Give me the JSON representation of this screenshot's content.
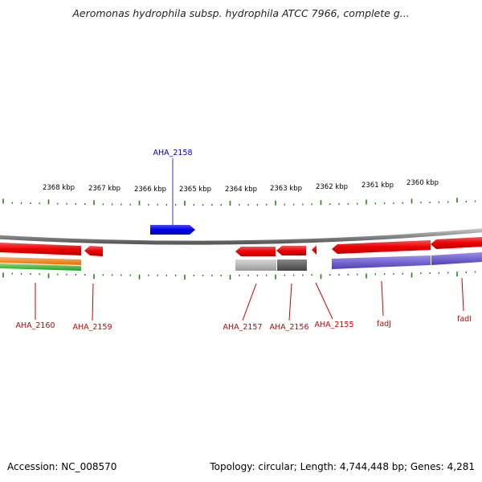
{
  "title": "Aeromonas hydrophila subsp. hydrophila ATCC 7966, complete g...",
  "footer": {
    "accession": "Accession: NC_008570",
    "summary": "Topology: circular; Length: 4,744,448 bp; Genes: 4,281"
  },
  "colors": {
    "backbone": "#8c8c8c",
    "tick": "#2e7d1a",
    "forward_gene": "#0000ee",
    "reverse_gene": "#ee0000",
    "gene_label_forward": "#0000aa",
    "gene_label_reverse": "#cc0000",
    "track_orange": "#ff8c1a",
    "track_green": "#33bb33",
    "track_gray_light": "#b3b3b3",
    "track_gray_dark": "#666666",
    "track_purple": "#6a5acd"
  },
  "scale": {
    "unit": "kbp",
    "labels": [
      "2368 kbp",
      "2367 kbp",
      "2366 kbp",
      "2365 kbp",
      "2364 kbp",
      "2363 kbp",
      "2362 kbp",
      "2361 kbp",
      "2360 kbp"
    ]
  },
  "genes": {
    "forward": [
      {
        "label": "AHA_2158"
      }
    ],
    "reverse": [
      {
        "label": "AHA_2160"
      },
      {
        "label": "AHA_2159"
      },
      {
        "label": "AHA_2157"
      },
      {
        "label": "AHA_2156"
      },
      {
        "label": "AHA_2155"
      },
      {
        "label": "fadJ"
      },
      {
        "label": "fadI"
      }
    ]
  }
}
